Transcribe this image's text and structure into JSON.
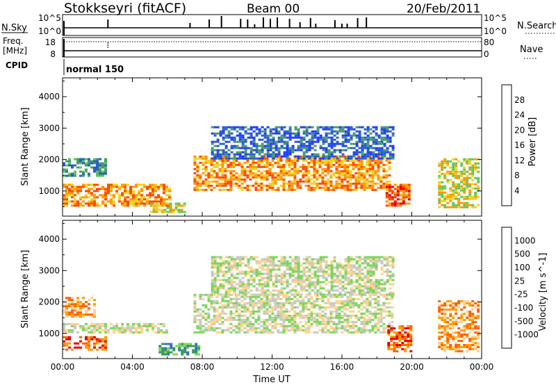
{
  "header": {
    "station": "Stokkseyri (fitACF)",
    "beam": "Beam 00",
    "date": "20/Feb/2011"
  },
  "panels": {
    "nsky": {
      "label": "N.Sky",
      "tick_top": "10^5",
      "tick_bottom": "10^0",
      "right_label": "N.Search",
      "right_tick_top": "10^5",
      "right_tick_bottom": "10^0"
    },
    "freq": {
      "label_line1": "Freq.",
      "label_line2": "[MHz]",
      "tick_top": "18",
      "tick_bottom": "8",
      "right_label": "Nave",
      "right_tick_top": "80",
      "right_tick_bottom": "0"
    },
    "cpid": {
      "label": "CPID",
      "mode": "normal 150"
    }
  },
  "chart_data": [
    {
      "type": "heatmap",
      "quantity": "Power",
      "ylabel": "Slant Range [km]",
      "yticks": [
        "1000",
        "2000",
        "3000",
        "4000"
      ],
      "ylim": [
        200,
        4600
      ],
      "xlim": [
        0,
        24
      ],
      "colorbar": {
        "label": "Power [dB]",
        "ticks": [
          "4",
          "8",
          "12",
          "16",
          "20",
          "24",
          "28"
        ],
        "colors": [
          "#1e3cff",
          "#2860c8",
          "#4a9a6a",
          "#5cc858",
          "#f0d21e",
          "#ff9600",
          "#ff4800",
          "#e60000"
        ]
      },
      "echo_regions": [
        {
          "t0": 0.0,
          "t1": 6.2,
          "r0": 500,
          "r1": 1200,
          "level": 5
        },
        {
          "t0": 0.0,
          "t1": 2.5,
          "r0": 1450,
          "r1": 2000,
          "level": 2
        },
        {
          "t0": 5.0,
          "t1": 7.0,
          "r0": 300,
          "r1": 600,
          "level": 4
        },
        {
          "t0": 7.5,
          "t1": 18.8,
          "r0": 1000,
          "r1": 2100,
          "level": 5
        },
        {
          "t0": 8.5,
          "t1": 19.0,
          "r0": 2000,
          "r1": 3000,
          "level": 1
        },
        {
          "t0": 18.5,
          "t1": 19.8,
          "r0": 500,
          "r1": 1200,
          "level": 6
        },
        {
          "t0": 21.5,
          "t1": 24.0,
          "r0": 450,
          "r1": 2000,
          "level": 4
        }
      ]
    },
    {
      "type": "heatmap",
      "quantity": "Velocity",
      "ylabel": "Slant Range [km]",
      "yticks": [
        "1000",
        "2000",
        "3000",
        "4000"
      ],
      "ylim": [
        200,
        4600
      ],
      "xlim": [
        0,
        24
      ],
      "xlabel": "Time UT",
      "xticks": [
        "00:00",
        "04:00",
        "08:00",
        "12:00",
        "16:00",
        "20:00",
        "00:00"
      ],
      "colorbar": {
        "label": "Velocity [m s^-1]",
        "ticks": [
          "1000",
          "500",
          "100",
          "25",
          "-25",
          "-100",
          "-500",
          "-1000"
        ],
        "colors": [
          "#1e3cff",
          "#3c70b4",
          "#2e9a5a",
          "#7ad65a",
          "#c8c8c0",
          "#ffd28c",
          "#ff9a00",
          "#ff6000",
          "#e60000"
        ]
      },
      "echo_regions": [
        {
          "t0": 0.0,
          "t1": 6.0,
          "r0": 1000,
          "r1": 1300,
          "level": 4
        },
        {
          "t0": 0.0,
          "t1": 2.5,
          "r0": 450,
          "r1": 900,
          "level": 7
        },
        {
          "t0": 0.0,
          "t1": 1.8,
          "r0": 1500,
          "r1": 2100,
          "level": 6
        },
        {
          "t0": 5.5,
          "t1": 7.8,
          "r0": 300,
          "r1": 650,
          "level": 2
        },
        {
          "t0": 7.5,
          "t1": 18.9,
          "r0": 1000,
          "r1": 2200,
          "level": 4
        },
        {
          "t0": 8.5,
          "t1": 19.0,
          "r0": 2200,
          "r1": 3400,
          "level": 4
        },
        {
          "t0": 18.6,
          "t1": 20.0,
          "r0": 400,
          "r1": 1200,
          "level": 7
        },
        {
          "t0": 21.5,
          "t1": 24.0,
          "r0": 400,
          "r1": 2000,
          "level": 6
        }
      ]
    }
  ],
  "nsky_spikes": [
    2.6,
    7.3,
    8.4,
    9.1,
    10.2,
    10.6,
    11.0,
    11.5,
    11.9,
    12.3,
    13.0,
    13.6,
    14.2,
    14.5,
    15.6,
    16.0,
    16.3,
    16.9,
    17.4
  ],
  "freq_points_x": [
    2.6,
    2.6,
    2.6
  ]
}
